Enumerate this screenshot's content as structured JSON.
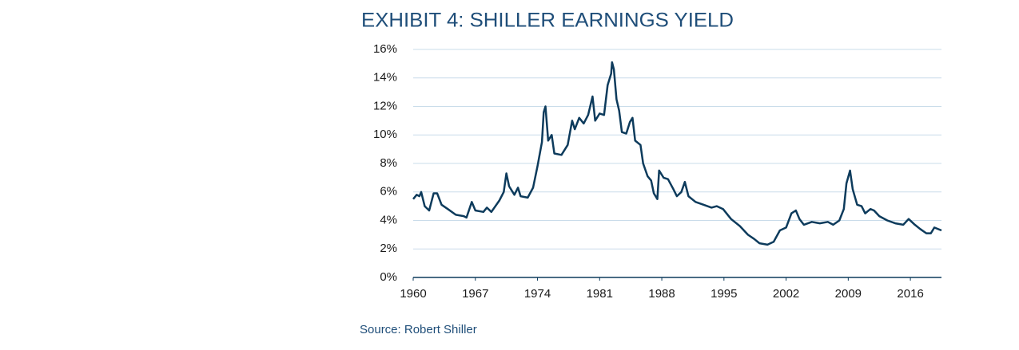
{
  "chart_data": {
    "type": "line",
    "title": "EXHIBIT 4: SHILLER EARNINGS YIELD",
    "source": "Source: Robert Shiller",
    "grid": true,
    "xlim": [
      1960,
      2019.5
    ],
    "xticks": [
      1960,
      1967,
      1974,
      1981,
      1988,
      1995,
      2002,
      2009,
      2016
    ],
    "ylim": [
      0,
      16
    ],
    "yticks": [
      {
        "value": 0,
        "label": "0%"
      },
      {
        "value": 2,
        "label": "2%"
      },
      {
        "value": 4,
        "label": "4%"
      },
      {
        "value": 6,
        "label": "6%"
      },
      {
        "value": 8,
        "label": "8%"
      },
      {
        "value": 10,
        "label": "10%"
      },
      {
        "value": 12,
        "label": "12%"
      },
      {
        "value": 14,
        "label": "14%"
      },
      {
        "value": 16,
        "label": "16%"
      }
    ],
    "x": [
      1960,
      1960.4,
      1960.7,
      1960.9,
      1961.3,
      1961.8,
      1962.3,
      1962.7,
      1963.2,
      1963.9,
      1964.8,
      1965.7,
      1966,
      1966.6,
      1967,
      1967.9,
      1968.3,
      1968.8,
      1969.7,
      1970.2,
      1970.5,
      1970.8,
      1971.4,
      1971.8,
      1972.1,
      1972.9,
      1973.5,
      1974,
      1974.5,
      1974.7,
      1974.9,
      1975.2,
      1975.6,
      1975.9,
      1976.7,
      1977.4,
      1977.9,
      1978.2,
      1978.7,
      1979.2,
      1979.7,
      1980.2,
      1980.5,
      1981,
      1981.5,
      1981.9,
      1982.3,
      1982.4,
      1982.6,
      1982.9,
      1983.2,
      1983.5,
      1984,
      1984.4,
      1984.7,
      1985,
      1985.6,
      1985.9,
      1986.4,
      1986.8,
      1987.1,
      1987.5,
      1987.7,
      1988.2,
      1988.7,
      1989.3,
      1989.7,
      1990.2,
      1990.6,
      1991,
      1991.8,
      1992.7,
      1993.6,
      1994.2,
      1994.9,
      1995.8,
      1996.8,
      1997.7,
      1998.4,
      1999,
      1999.9,
      2000.6,
      2001.3,
      2002,
      2002.6,
      2003.1,
      2003.5,
      2004,
      2004.9,
      2005.8,
      2006.7,
      2007.3,
      2008,
      2008.5,
      2008.8,
      2009.2,
      2009.5,
      2010,
      2010.5,
      2010.9,
      2011.5,
      2011.9,
      2012.5,
      2013.4,
      2014.3,
      2015.2,
      2015.8,
      2016.5,
      2017.1,
      2017.8,
      2018.3,
      2018.7,
      2019.5
    ],
    "series": [
      {
        "color": "#0d3b5c",
        "values": [
          5.5,
          5.8,
          5.7,
          6.0,
          5.0,
          4.7,
          5.9,
          5.9,
          5.1,
          4.8,
          4.4,
          4.3,
          4.2,
          5.3,
          4.7,
          4.6,
          4.9,
          4.6,
          5.4,
          6.0,
          7.3,
          6.4,
          5.8,
          6.3,
          5.7,
          5.6,
          6.3,
          7.8,
          9.5,
          11.6,
          12.0,
          9.6,
          10.0,
          8.7,
          8.6,
          9.3,
          11.0,
          10.4,
          11.2,
          10.8,
          11.4,
          12.7,
          11.0,
          11.5,
          11.4,
          13.5,
          14.3,
          15.1,
          14.6,
          12.5,
          11.7,
          10.2,
          10.1,
          10.9,
          11.2,
          9.6,
          9.3,
          8.0,
          7.1,
          6.8,
          5.9,
          5.5,
          7.5,
          7.0,
          6.9,
          6.2,
          5.7,
          6.0,
          6.7,
          5.7,
          5.3,
          5.1,
          4.9,
          5.0,
          4.8,
          4.1,
          3.6,
          3.0,
          2.7,
          2.4,
          2.3,
          2.5,
          3.3,
          3.5,
          4.5,
          4.7,
          4.1,
          3.7,
          3.9,
          3.8,
          3.9,
          3.7,
          4.0,
          4.8,
          6.6,
          7.5,
          6.2,
          5.1,
          5.0,
          4.5,
          4.8,
          4.7,
          4.3,
          4.0,
          3.8,
          3.7,
          4.1,
          3.7,
          3.4,
          3.1,
          3.1,
          3.5,
          3.3
        ]
      }
    ]
  }
}
